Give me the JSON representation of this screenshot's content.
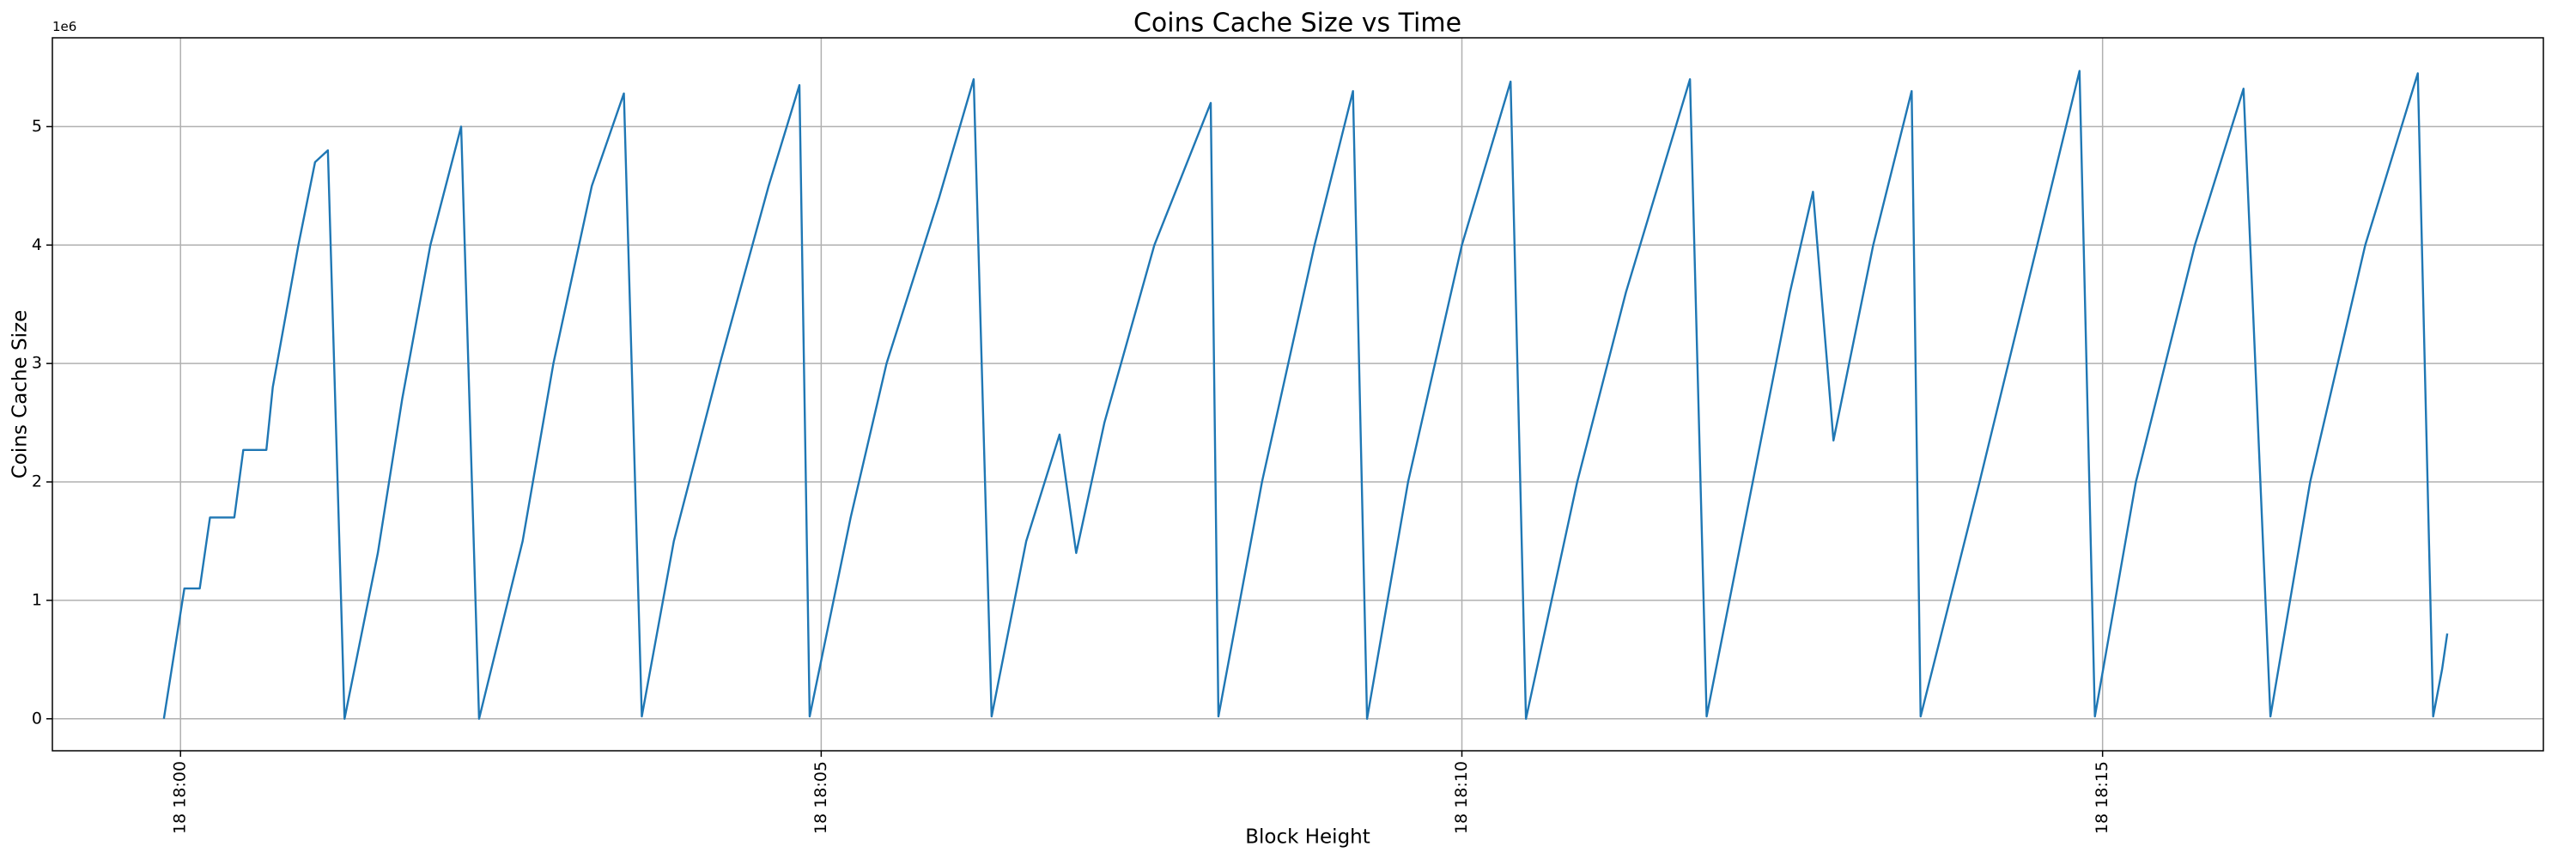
{
  "chart_data": {
    "type": "line",
    "title": "Coins Cache Size vs Time",
    "x_label": "Block Height",
    "y_label": "Coins Cache Size",
    "y_offset_text": "1e6",
    "x": [
      -0.13,
      0.03,
      0.15,
      0.23,
      0.42,
      0.49,
      0.67,
      0.72,
      0.92,
      1.05,
      1.15,
      1.28,
      1.54,
      1.73,
      1.95,
      2.19,
      2.33,
      2.67,
      2.91,
      3.21,
      3.46,
      3.6,
      3.85,
      4.21,
      4.59,
      4.83,
      4.91,
      5.23,
      5.51,
      5.92,
      6.19,
      6.33,
      6.6,
      6.86,
      6.99,
      7.21,
      7.6,
      8.04,
      8.1,
      8.44,
      8.85,
      9.15,
      9.26,
      9.58,
      10.0,
      10.38,
      10.5,
      10.9,
      11.28,
      11.78,
      11.91,
      12.27,
      12.56,
      12.74,
      12.9,
      13.21,
      13.51,
      13.58,
      14.04,
      14.49,
      14.82,
      14.94,
      15.26,
      15.72,
      16.1,
      16.31,
      16.62,
      17.05,
      17.46,
      17.58,
      17.65,
      17.69
    ],
    "series": [
      {
        "name": "Coins Cache Size",
        "color": "#1f77b4",
        "values": [
          0,
          1100000,
          1100000,
          1700000,
          1700000,
          2270000,
          2270000,
          2800000,
          4000000,
          4700000,
          4800000,
          0,
          1400000,
          2700000,
          4000000,
          5000000,
          0,
          1500000,
          3000000,
          4500000,
          5280000,
          20000,
          1500000,
          3000000,
          4500000,
          5350000,
          20000,
          1700000,
          3000000,
          4400000,
          5400000,
          20000,
          1500000,
          2400000,
          1400000,
          2500000,
          4000000,
          5200000,
          20000,
          2000000,
          4000000,
          5300000,
          0,
          2000000,
          4000000,
          5380000,
          0,
          2000000,
          3600000,
          5400000,
          20000,
          2000000,
          3600000,
          4450000,
          2350000,
          4000000,
          5300000,
          20000,
          2000000,
          4000000,
          5470000,
          20000,
          2000000,
          4000000,
          5320000,
          20000,
          2000000,
          4000000,
          5450000,
          20000,
          420000,
          720000
        ]
      }
    ],
    "xlim": [
      -1.0,
      18.44
    ],
    "xticks": [
      {
        "value": 0,
        "label": "18 18:00"
      },
      {
        "value": 5,
        "label": "18 18:05"
      },
      {
        "value": 10,
        "label": "18 18:10"
      },
      {
        "value": 15,
        "label": "18 18:15"
      }
    ],
    "ylim": [
      -270000,
      5750000
    ],
    "yticks": [
      {
        "value": 0,
        "label": "0"
      },
      {
        "value": 1000000,
        "label": "1"
      },
      {
        "value": 2000000,
        "label": "2"
      },
      {
        "value": 3000000,
        "label": "3"
      },
      {
        "value": 4000000,
        "label": "4"
      },
      {
        "value": 5000000,
        "label": "5"
      }
    ],
    "grid": true
  }
}
